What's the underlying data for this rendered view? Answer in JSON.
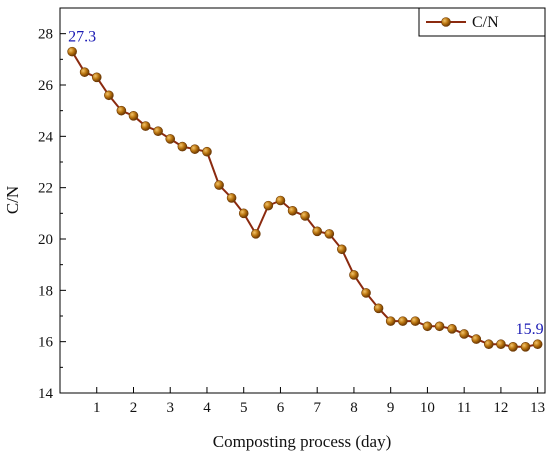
{
  "chart_data": {
    "type": "line",
    "xlabel": "Composting process (day)",
    "ylabel": "C/N",
    "xlim": [
      0,
      13.2
    ],
    "ylim": [
      14,
      29
    ],
    "xticks": [
      1,
      2,
      3,
      4,
      5,
      6,
      7,
      8,
      9,
      10,
      11,
      12,
      13
    ],
    "yticks": [
      14,
      16,
      18,
      20,
      22,
      24,
      26,
      28
    ],
    "grid": false,
    "legend_position": "top-right",
    "colors": {
      "line": "#8B2A0F",
      "marker": "#B8730E",
      "annotation": "#1a1ab4"
    },
    "series": [
      {
        "name": "C/N",
        "x": [
          0.33,
          0.67,
          1.0,
          1.33,
          1.67,
          2.0,
          2.33,
          2.67,
          3.0,
          3.33,
          3.67,
          4.0,
          4.33,
          4.67,
          5.0,
          5.33,
          5.67,
          6.0,
          6.33,
          6.67,
          7.0,
          7.33,
          7.67,
          8.0,
          8.33,
          8.67,
          9.0,
          9.33,
          9.67,
          10.0,
          10.33,
          10.67,
          11.0,
          11.33,
          11.67,
          12.0,
          12.33,
          12.67,
          13.0
        ],
        "values": [
          27.3,
          26.5,
          26.3,
          25.6,
          25.0,
          24.8,
          24.4,
          24.2,
          23.9,
          23.6,
          23.5,
          23.4,
          22.1,
          21.6,
          21.0,
          20.2,
          21.3,
          21.5,
          21.1,
          20.9,
          20.3,
          20.2,
          19.6,
          18.6,
          17.9,
          17.3,
          16.8,
          16.8,
          16.8,
          16.6,
          16.6,
          16.5,
          16.3,
          16.1,
          15.9,
          15.9,
          15.8,
          15.8,
          15.9
        ]
      }
    ],
    "annotations": [
      {
        "text": "27.3",
        "x": 0.33,
        "y": 27.3
      },
      {
        "text": "15.9",
        "x": 13.0,
        "y": 15.9
      }
    ]
  }
}
